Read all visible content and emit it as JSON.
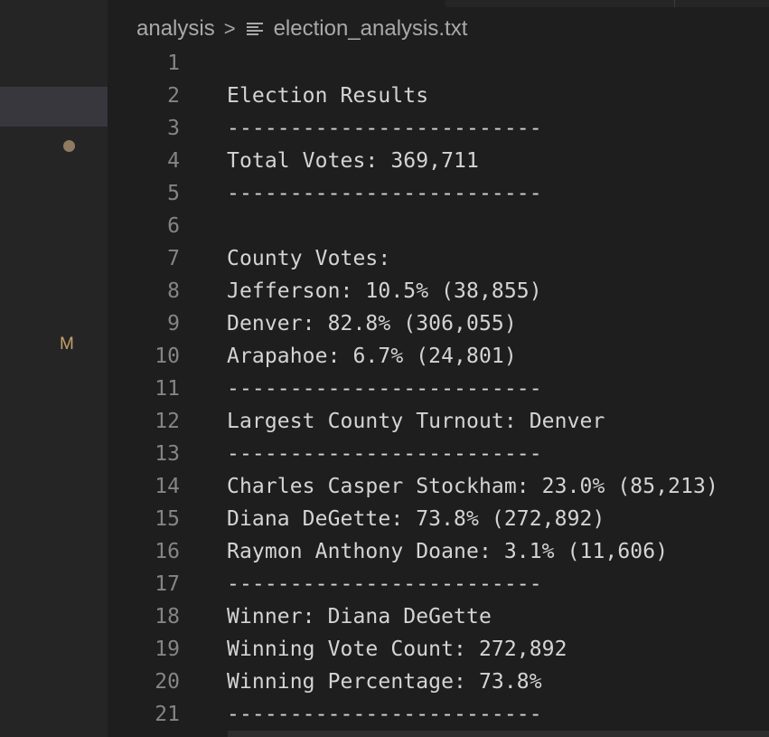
{
  "breadcrumb": {
    "folder": "analysis",
    "separator": ">",
    "file": "election_analysis.txt",
    "file_icon": "text-file-icon"
  },
  "sidebar": {
    "git_status": "M"
  },
  "editor": {
    "lines": [
      {
        "number": "1",
        "text": ""
      },
      {
        "number": "2",
        "text": "Election Results"
      },
      {
        "number": "3",
        "text": "-------------------------"
      },
      {
        "number": "4",
        "text": "Total Votes: 369,711"
      },
      {
        "number": "5",
        "text": "-------------------------"
      },
      {
        "number": "6",
        "text": ""
      },
      {
        "number": "7",
        "text": "County Votes:"
      },
      {
        "number": "8",
        "text": "Jefferson: 10.5% (38,855)"
      },
      {
        "number": "9",
        "text": "Denver: 82.8% (306,055)"
      },
      {
        "number": "10",
        "text": "Arapahoe: 6.7% (24,801)"
      },
      {
        "number": "11",
        "text": "-------------------------"
      },
      {
        "number": "12",
        "text": "Largest County Turnout: Denver"
      },
      {
        "number": "13",
        "text": "-------------------------"
      },
      {
        "number": "14",
        "text": "Charles Casper Stockham: 23.0% (85,213)"
      },
      {
        "number": "15",
        "text": "Diana DeGette: 73.8% (272,892)"
      },
      {
        "number": "16",
        "text": "Raymon Anthony Doane: 3.1% (11,606)"
      },
      {
        "number": "17",
        "text": "-------------------------"
      },
      {
        "number": "18",
        "text": "Winner: Diana DeGette"
      },
      {
        "number": "19",
        "text": "Winning Vote Count: 272,892"
      },
      {
        "number": "20",
        "text": "Winning Percentage: 73.8%"
      },
      {
        "number": "21",
        "text": "-------------------------"
      }
    ]
  },
  "colors": {
    "background": "#1e1e1e",
    "sidebar": "#252526",
    "text": "#d4d4d4",
    "line_number": "#858585",
    "modified": "#c6a26b"
  }
}
